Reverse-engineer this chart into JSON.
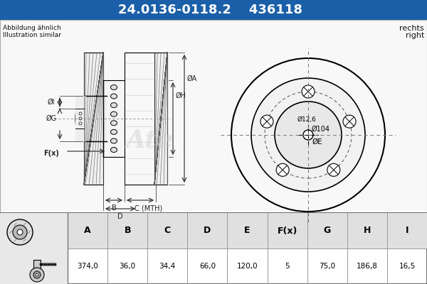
{
  "title_part_number": "24.0136-0118.2",
  "title_ref_number": "436118",
  "header_bg_color": "#1a5fa8",
  "header_text_color": "#ffffff",
  "label_abbildung": "Abbildung ähnlich",
  "label_illustration": "Illustration similar",
  "label_rechts": "rechts",
  "label_right": "right",
  "table_headers": [
    "A",
    "B",
    "C",
    "D",
    "E",
    "F(x)",
    "G",
    "H",
    "I"
  ],
  "table_values": [
    "374,0",
    "36,0",
    "34,4",
    "66,0",
    "120,0",
    "5",
    "75,0",
    "186,8",
    "16,5"
  ],
  "line_color": "#000000",
  "bg_color": "#ffffff",
  "drawing_bg": "#f8f8f8",
  "dim_line_color": "#222222",
  "hatch_color": "#555555",
  "dashed_color": "#666666",
  "watermark_color": "#cccccc",
  "table_header_bg": "#e0e0e0",
  "table_value_bg": "#ffffff",
  "table_border": "#888888"
}
